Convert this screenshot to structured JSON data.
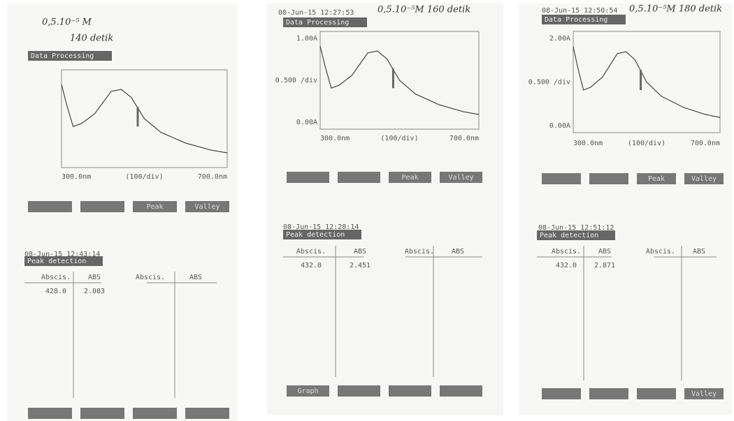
{
  "panels": [
    {
      "note": [
        "0,5.10⁻⁵ M",
        "140 detik"
      ],
      "timestamp": null,
      "graph": {
        "title": "Data Processing",
        "y_labels": [],
        "x_labels": [
          "300.0nm",
          "(100/div)",
          "700.0nm"
        ]
      },
      "buttons": [
        null,
        null,
        "Peak",
        "Valley"
      ],
      "peak": {
        "timestamp": "08-Jun-15 12:43:14",
        "title": "Peak detection",
        "columns": [
          "Abscis.",
          "ABS",
          "Abscis.",
          "ABS"
        ],
        "rows": [
          [
            "428.0",
            "2.083"
          ]
        ]
      },
      "bottom_buttons": [
        null,
        null,
        null,
        null
      ]
    },
    {
      "note": [
        "0,5.10⁻⁵M 160 detik"
      ],
      "timestamp": "08-Jun-15 12:27:53",
      "graph": {
        "title": "Data Processing",
        "y_labels": [
          "1.00A",
          "0.500 /div",
          "0.00A"
        ],
        "x_labels": [
          "300.0nm",
          "(100/div)",
          "700.0nm"
        ]
      },
      "buttons": [
        null,
        null,
        "Peak",
        "Valley"
      ],
      "peak": {
        "timestamp": "08-Jun-15 12:28:14",
        "title": "Peak detection",
        "columns": [
          "Abscis.",
          "ABS",
          "Abscis.",
          "ABS"
        ],
        "rows": [
          [
            "432.0",
            "2.451"
          ]
        ]
      },
      "bottom_buttons": [
        "Graph",
        null,
        null,
        null
      ]
    },
    {
      "note": [
        "0,5.10⁻⁵M 180 detik"
      ],
      "timestamp": "08-Jun-15 12:50:54",
      "graph": {
        "title": "Data Processing",
        "y_labels": [
          "2.00A",
          "0.500 /div",
          "0.00A"
        ],
        "x_labels": [
          "300.0nm",
          "(100/div)",
          "700.0nm"
        ]
      },
      "buttons": [
        null,
        null,
        "Peak",
        "Valley"
      ],
      "peak": {
        "timestamp": "08-Jun-15 12:51:12",
        "title": "Peak detection",
        "columns": [
          "Abscis.",
          "ABS",
          "Abscis.",
          "ABS"
        ],
        "rows": [
          [
            "432.0",
            "2.871"
          ]
        ]
      },
      "bottom_buttons": [
        null,
        null,
        null,
        "Valley"
      ]
    }
  ]
}
